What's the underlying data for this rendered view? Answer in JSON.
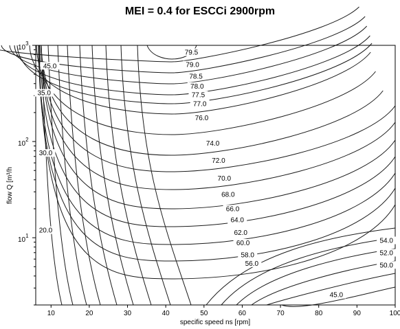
{
  "chart_data": {
    "type": "contour",
    "title": "MEI = 0.4 for ESCCi 2900rpm",
    "xlabel": "specific speed ns [rpm]",
    "ylabel": "flow Q [m³/h",
    "xlim": [
      6,
      100
    ],
    "ylim": [
      2,
      1000
    ],
    "y_scale": "log",
    "x_ticks": [
      "10",
      "20",
      "30",
      "40",
      "50",
      "60",
      "70",
      "80",
      "90",
      "100"
    ],
    "y_ticks": [
      {
        "base": "10",
        "exp": "1"
      },
      {
        "base": "10",
        "exp": "2"
      },
      {
        "base": "10",
        "exp": "3"
      }
    ],
    "contour_labels": [
      {
        "text": "79.5",
        "x": 46.7,
        "y": 813
      },
      {
        "text": "79.0",
        "x": 47.0,
        "y": 605
      },
      {
        "text": "78.5",
        "x": 47.9,
        "y": 458
      },
      {
        "text": "78.0",
        "x": 48.2,
        "y": 362
      },
      {
        "text": "77.5",
        "x": 48.5,
        "y": 293
      },
      {
        "text": "77.0",
        "x": 48.9,
        "y": 238
      },
      {
        "text": "76.0",
        "x": 49.4,
        "y": 169
      },
      {
        "text": "74.0",
        "x": 52.3,
        "y": 92
      },
      {
        "text": "72.0",
        "x": 53.8,
        "y": 61
      },
      {
        "text": "70.0",
        "x": 55.3,
        "y": 40
      },
      {
        "text": "68.0",
        "x": 56.3,
        "y": 27
      },
      {
        "text": "66.0",
        "x": 57.5,
        "y": 19.2
      },
      {
        "text": "64.0",
        "x": 58.7,
        "y": 14.7
      },
      {
        "text": "62.0",
        "x": 59.6,
        "y": 10.9
      },
      {
        "text": "60.0",
        "x": 60.2,
        "y": 8.5
      },
      {
        "text": "58.0",
        "x": 61.4,
        "y": 6.4
      },
      {
        "text": "56.0",
        "x": 62.5,
        "y": 5.2
      },
      {
        "text": "54.0",
        "x": 97.7,
        "y": 9.0
      },
      {
        "text": "52.0",
        "x": 97.7,
        "y": 6.7
      },
      {
        "text": "50.0",
        "x": 97.7,
        "y": 5.0
      },
      {
        "text": "45.0",
        "x": 84.6,
        "y": 2.45
      },
      {
        "text": "45.0",
        "x": 9.7,
        "y": 588
      },
      {
        "text": "35.0",
        "x": 8.2,
        "y": 308
      },
      {
        "text": "30.0",
        "x": 8.6,
        "y": 73
      },
      {
        "text": "20.0",
        "x": 8.6,
        "y": 11.5
      }
    ],
    "grid": false,
    "legend": "none"
  }
}
